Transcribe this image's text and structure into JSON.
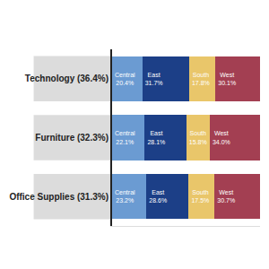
{
  "chart_data": {
    "type": "bar",
    "orientation": "horizontal",
    "stacked": true,
    "categories": [
      "Technology (36.4%)",
      "Furniture (32.3%)",
      "Office Supplies (31.3%)"
    ],
    "series": [
      {
        "name": "Central",
        "color": "#6b9bd2",
        "values": [
          20.4,
          22.1,
          23.2
        ],
        "value_labels": [
          "20.4%",
          "22.1%",
          "23.2%"
        ]
      },
      {
        "name": "East",
        "color": "#1c3f87",
        "values": [
          31.7,
          28.1,
          28.6
        ],
        "value_labels": [
          "31.7%",
          "28.1%",
          "28.6%"
        ]
      },
      {
        "name": "South",
        "color": "#e9c66a",
        "values": [
          17.8,
          15.8,
          17.5
        ],
        "value_labels": [
          "17.8%",
          "15.8%",
          "17.5%"
        ]
      },
      {
        "name": "West",
        "color": "#a33f52",
        "values": [
          30.1,
          34.0,
          30.7
        ],
        "value_labels": [
          "30.1%",
          "34.0%",
          "30.7%"
        ]
      }
    ],
    "xlim": [
      0,
      100
    ],
    "data_labels": true,
    "tick_labels": "y",
    "grid": false
  }
}
